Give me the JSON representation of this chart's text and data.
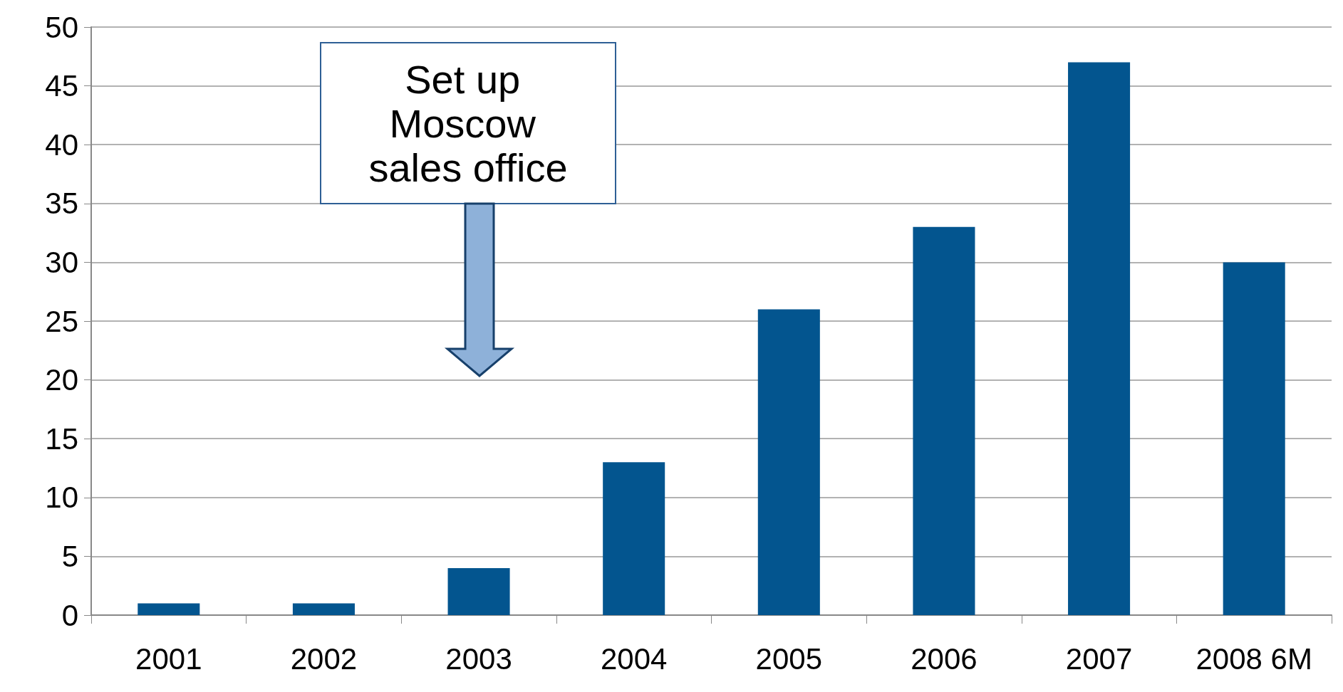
{
  "chart_data": {
    "type": "bar",
    "categories": [
      "2001",
      "2002",
      "2003",
      "2004",
      "2005",
      "2006",
      "2007",
      "2008 6M"
    ],
    "values": [
      1,
      1,
      4,
      13,
      26,
      33,
      47,
      30
    ],
    "color": "#03558f",
    "ylim": [
      0,
      50
    ],
    "yticks": [
      0,
      5,
      10,
      15,
      20,
      25,
      30,
      35,
      40,
      45,
      50
    ],
    "grid": "y",
    "annotations": [
      "Set up Moscow sales office"
    ]
  }
}
